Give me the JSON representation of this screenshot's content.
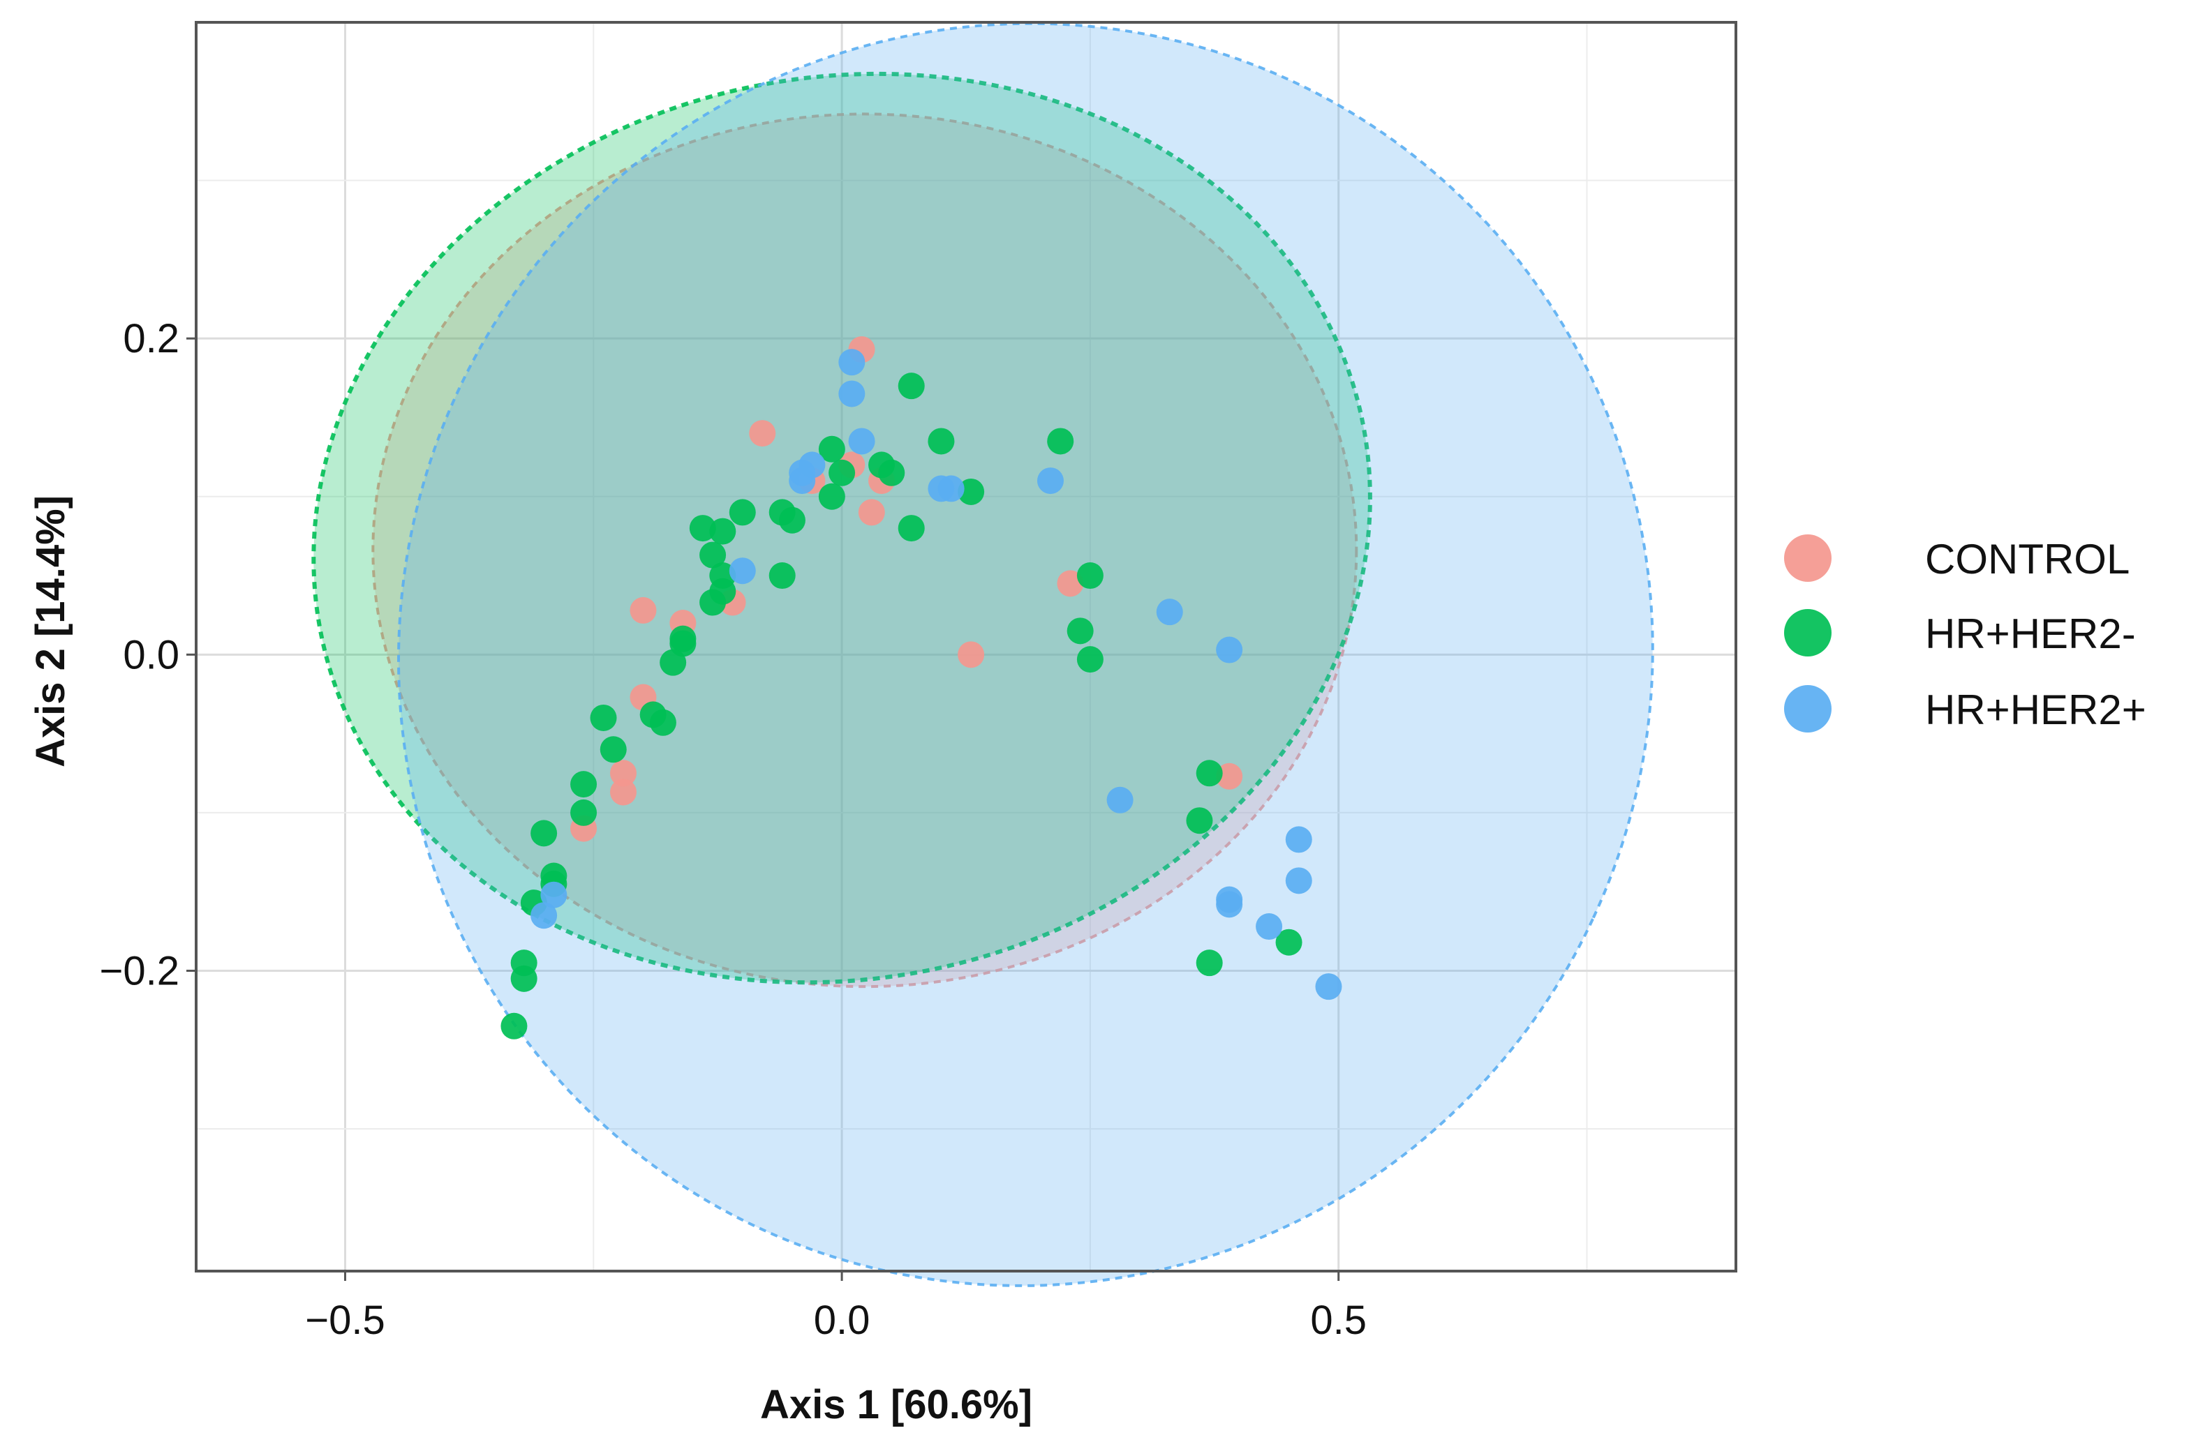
{
  "chart_data": {
    "type": "scatter",
    "title": "",
    "xlabel": "Axis 1 [60.6%]",
    "ylabel": "Axis 2 [14.4%]",
    "xlim": [
      -0.65,
      0.9
    ],
    "ylim": [
      -0.39,
      0.4
    ],
    "xticks": [
      -0.5,
      0.0,
      0.5
    ],
    "xtick_labels": [
      "−0.5",
      "0.0",
      "0.5"
    ],
    "yticks": [
      -0.2,
      0.0,
      0.2
    ],
    "ytick_labels": [
      "−0.2",
      "0.0",
      "0.2"
    ],
    "grid": true,
    "legend_position": "right",
    "series": [
      {
        "name": "CONTROL",
        "color": "#F4978E",
        "ellipse": {
          "cx": 0.023,
          "cy": 0.066,
          "rx": 0.495,
          "ry": 0.276,
          "angle": 0
        },
        "points": [
          [
            0.02,
            0.193
          ],
          [
            -0.08,
            0.14
          ],
          [
            0.01,
            0.12
          ],
          [
            0.04,
            0.11
          ],
          [
            0.03,
            0.09
          ],
          [
            -0.03,
            0.11
          ],
          [
            -0.2,
            0.028
          ],
          [
            -0.16,
            0.02
          ],
          [
            -0.11,
            0.033
          ],
          [
            -0.2,
            -0.027
          ],
          [
            -0.22,
            -0.075
          ],
          [
            -0.22,
            -0.087
          ],
          [
            -0.26,
            -0.11
          ],
          [
            0.23,
            0.045
          ],
          [
            0.13,
            0.0
          ],
          [
            0.39,
            -0.077
          ]
        ]
      },
      {
        "name": "HR+HER2-",
        "color": "#00BF55",
        "ellipse": {
          "cx": 0.0,
          "cy": 0.08,
          "rx": 0.535,
          "ry": 0.285,
          "angle": -12
        },
        "points": [
          [
            0.07,
            0.17
          ],
          [
            0.1,
            0.135
          ],
          [
            0.22,
            0.135
          ],
          [
            -0.01,
            0.13
          ],
          [
            0.04,
            0.12
          ],
          [
            0.05,
            0.115
          ],
          [
            0.0,
            0.115
          ],
          [
            0.13,
            0.103
          ],
          [
            -0.01,
            0.1
          ],
          [
            -0.06,
            0.09
          ],
          [
            -0.1,
            0.09
          ],
          [
            -0.14,
            0.08
          ],
          [
            -0.12,
            0.078
          ],
          [
            -0.05,
            0.085
          ],
          [
            0.07,
            0.08
          ],
          [
            -0.13,
            0.063
          ],
          [
            -0.12,
            0.05
          ],
          [
            -0.06,
            0.05
          ],
          [
            0.25,
            0.05
          ],
          [
            -0.12,
            0.04
          ],
          [
            -0.13,
            0.033
          ],
          [
            -0.16,
            0.01
          ],
          [
            -0.16,
            0.007
          ],
          [
            -0.17,
            -0.005
          ],
          [
            0.24,
            0.015
          ],
          [
            0.25,
            -0.003
          ],
          [
            -0.24,
            -0.04
          ],
          [
            -0.19,
            -0.038
          ],
          [
            -0.18,
            -0.043
          ],
          [
            -0.23,
            -0.06
          ],
          [
            -0.26,
            -0.082
          ],
          [
            -0.26,
            -0.1
          ],
          [
            -0.3,
            -0.113
          ],
          [
            -0.29,
            -0.14
          ],
          [
            -0.29,
            -0.145
          ],
          [
            -0.31,
            -0.157
          ],
          [
            -0.32,
            -0.195
          ],
          [
            -0.32,
            -0.205
          ],
          [
            -0.33,
            -0.235
          ],
          [
            0.37,
            -0.075
          ],
          [
            0.36,
            -0.105
          ],
          [
            0.37,
            -0.195
          ],
          [
            0.45,
            -0.182
          ]
        ]
      },
      {
        "name": "HR+HER2+",
        "color": "#5AAEF2",
        "ellipse": {
          "cx": 0.185,
          "cy": 0.0,
          "rx": 0.63,
          "ry": 0.4,
          "angle": 25
        },
        "points": [
          [
            0.01,
            0.185
          ],
          [
            0.01,
            0.165
          ],
          [
            0.02,
            0.135
          ],
          [
            -0.04,
            0.115
          ],
          [
            -0.03,
            0.12
          ],
          [
            -0.04,
            0.11
          ],
          [
            0.1,
            0.105
          ],
          [
            0.11,
            0.105
          ],
          [
            0.21,
            0.11
          ],
          [
            -0.1,
            0.053
          ],
          [
            0.33,
            0.027
          ],
          [
            0.39,
            0.003
          ],
          [
            0.28,
            -0.092
          ],
          [
            0.46,
            -0.117
          ],
          [
            0.46,
            -0.143
          ],
          [
            0.39,
            -0.155
          ],
          [
            0.39,
            -0.158
          ],
          [
            0.43,
            -0.172
          ],
          [
            0.49,
            -0.21
          ],
          [
            -0.29,
            -0.152
          ],
          [
            -0.3,
            -0.165
          ]
        ]
      }
    ]
  }
}
